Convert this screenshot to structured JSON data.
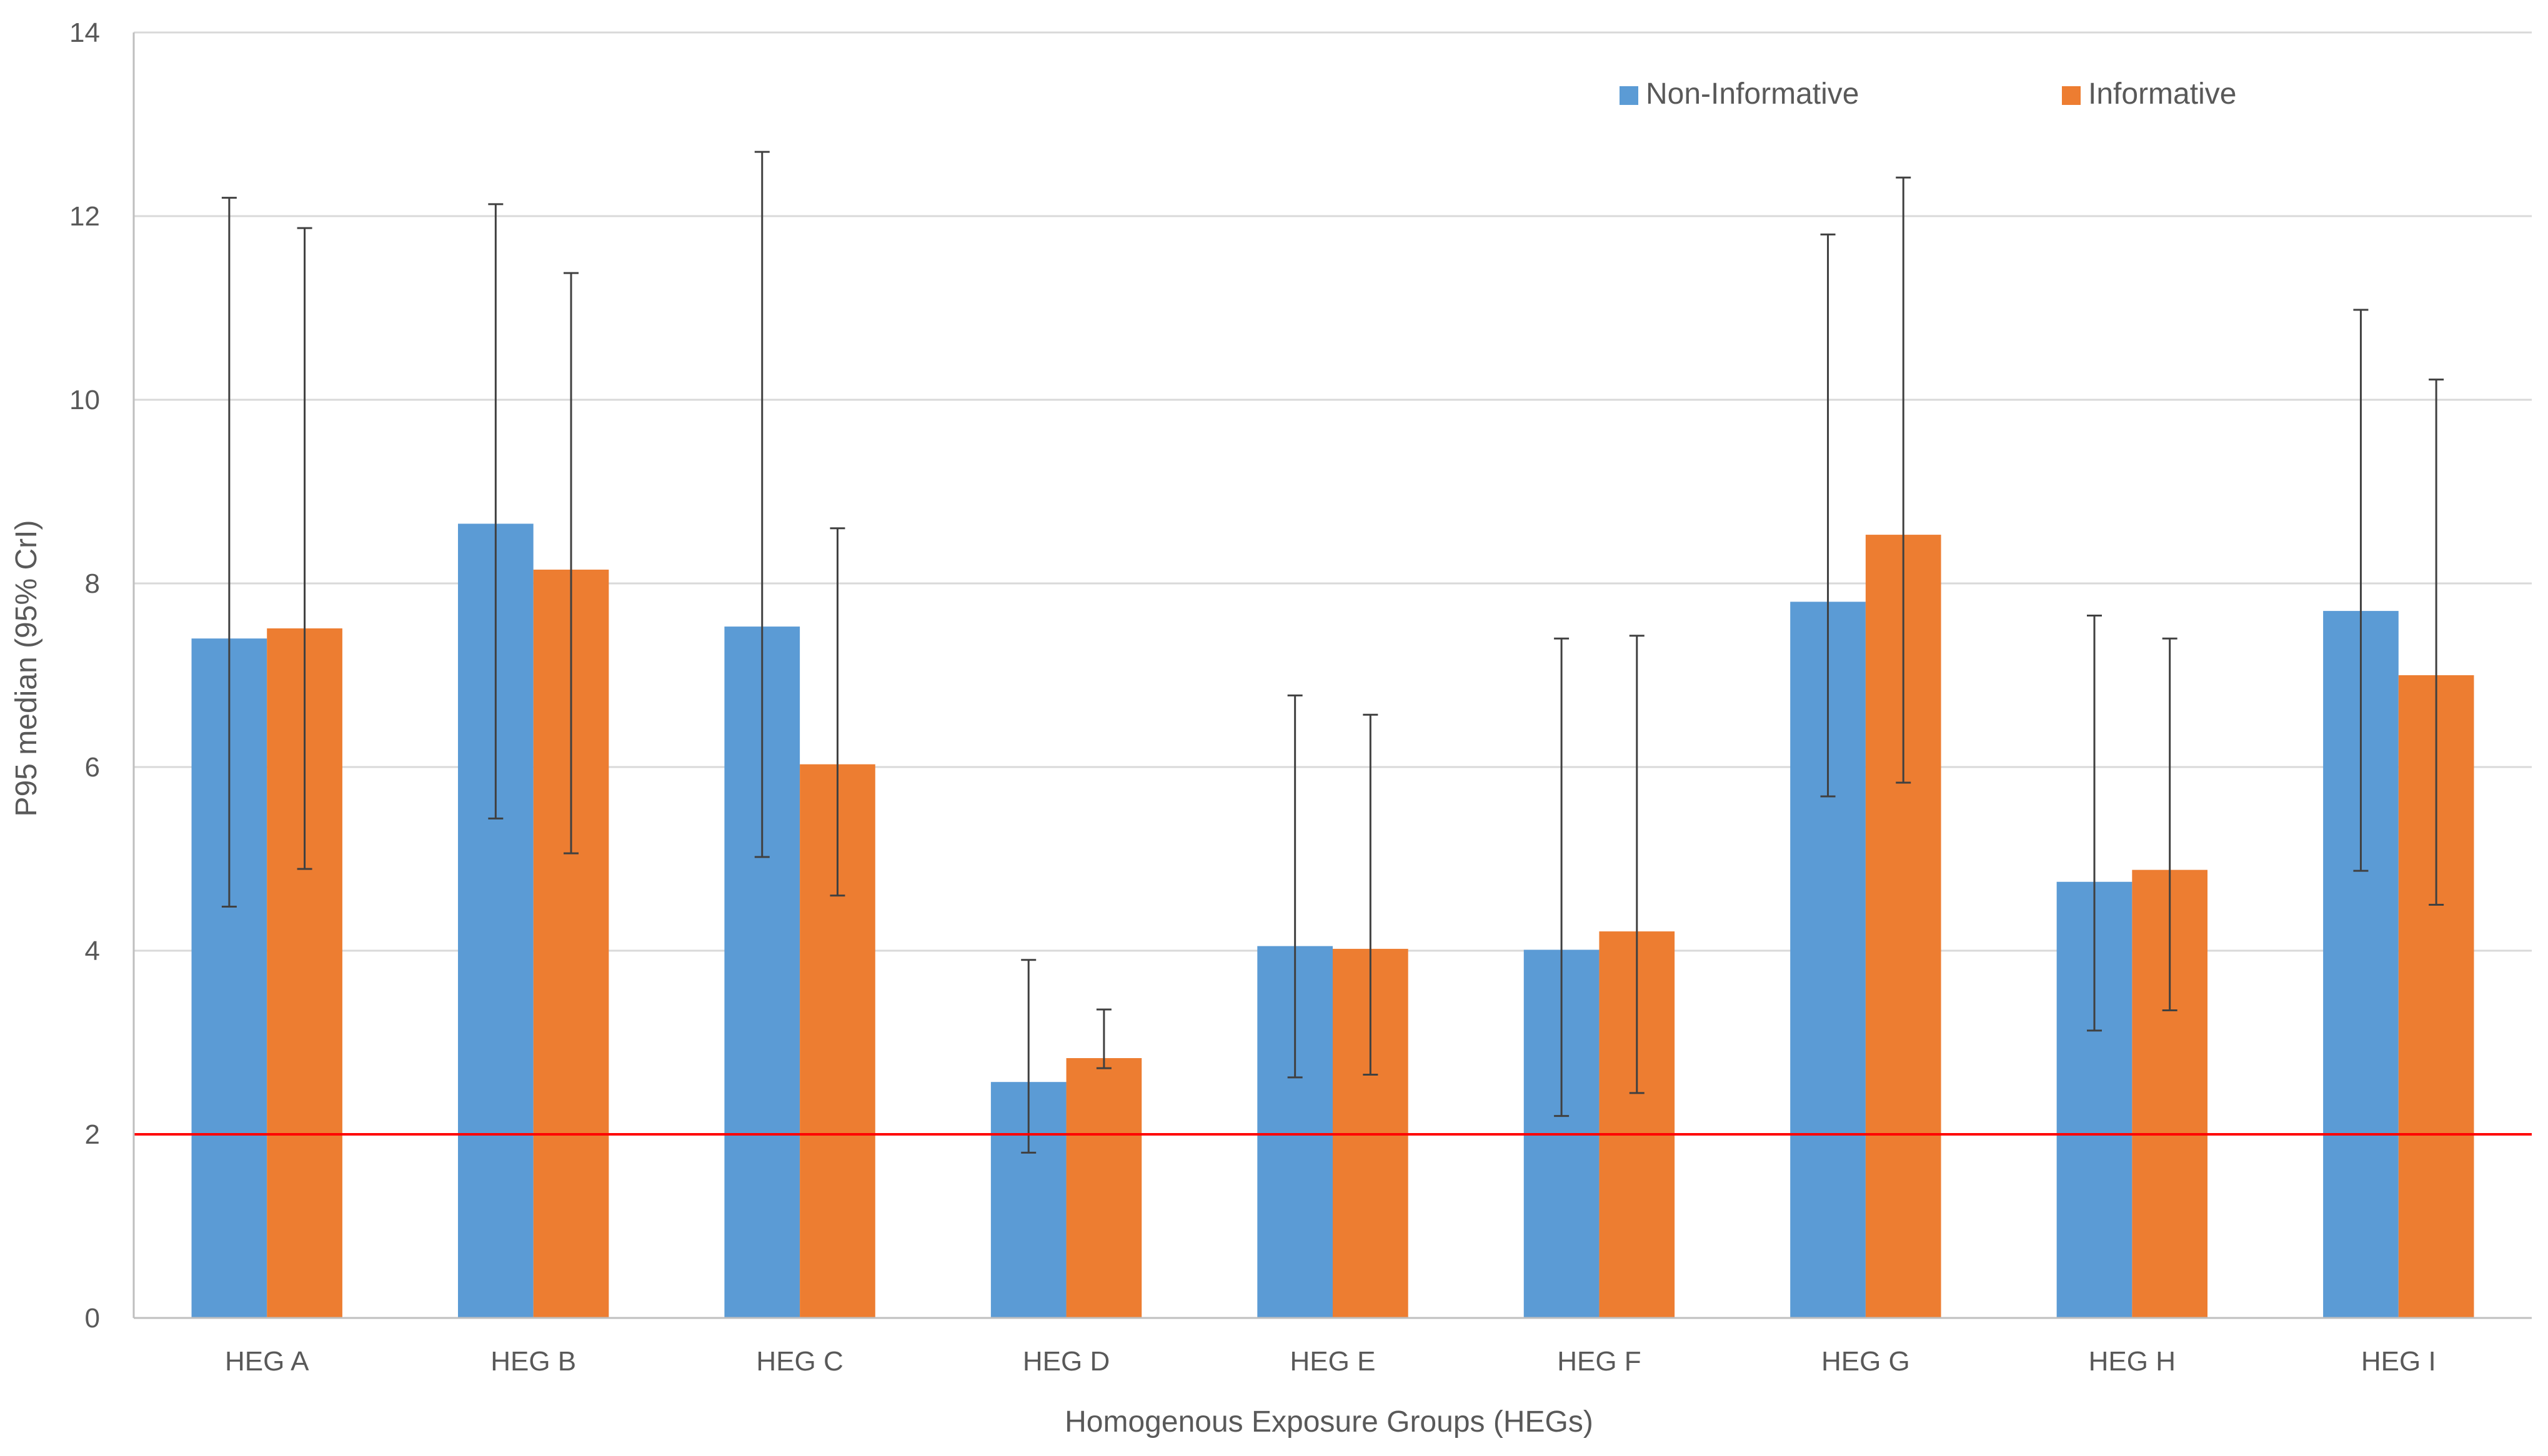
{
  "chart_data": {
    "type": "bar",
    "title": "",
    "xlabel": "Homogenous Exposure Groups (HEGs)",
    "ylabel": "P95 median (95% CrI)",
    "ylim": [
      0,
      14
    ],
    "yticks": [
      0,
      2,
      4,
      6,
      8,
      10,
      12,
      14
    ],
    "grid": true,
    "legend_position": "top-right",
    "categories": [
      "HEG A",
      "HEG B",
      "HEG C",
      "HEG D",
      "HEG E",
      "HEG F",
      "HEG G",
      "HEG H",
      "HEG I"
    ],
    "series": [
      {
        "name": "Non-Informative",
        "color": "#5B9BD5",
        "values": [
          7.4,
          8.65,
          7.53,
          2.57,
          4.05,
          4.01,
          7.8,
          4.75,
          7.7
        ],
        "lower": [
          4.48,
          5.44,
          5.02,
          1.8,
          2.62,
          2.2,
          5.68,
          3.13,
          4.87
        ],
        "upper": [
          12.2,
          12.13,
          12.7,
          3.9,
          6.78,
          7.4,
          11.8,
          7.65,
          10.98
        ]
      },
      {
        "name": "Informative",
        "color": "#ED7D31",
        "values": [
          7.51,
          8.15,
          6.03,
          2.83,
          4.02,
          4.21,
          8.53,
          4.88,
          7.0
        ],
        "lower": [
          4.89,
          5.06,
          4.6,
          2.72,
          2.65,
          2.45,
          5.83,
          3.35,
          4.5
        ],
        "upper": [
          11.87,
          11.38,
          8.6,
          3.36,
          6.57,
          7.43,
          12.42,
          7.4,
          10.22
        ]
      }
    ],
    "reference_line": {
      "value": 2,
      "color": "#FF0000"
    },
    "error_bar_color": "#404040",
    "grid_color": "#D9D9D9",
    "axis_color": "#BFBFBF"
  }
}
